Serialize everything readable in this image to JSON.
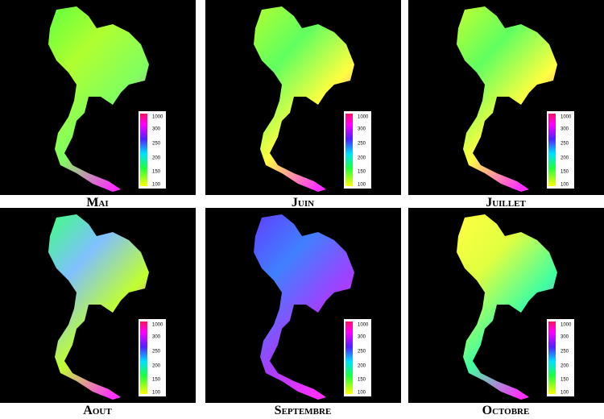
{
  "panels": [
    {
      "label": "Mai"
    },
    {
      "label": "Juin"
    },
    {
      "label": "Juillet"
    },
    {
      "label": "Aout"
    },
    {
      "label": "Septembre"
    },
    {
      "label": "Octobre"
    }
  ],
  "legend": {
    "ticks": [
      "1000",
      "300",
      "250",
      "200",
      "150",
      "100"
    ]
  }
}
